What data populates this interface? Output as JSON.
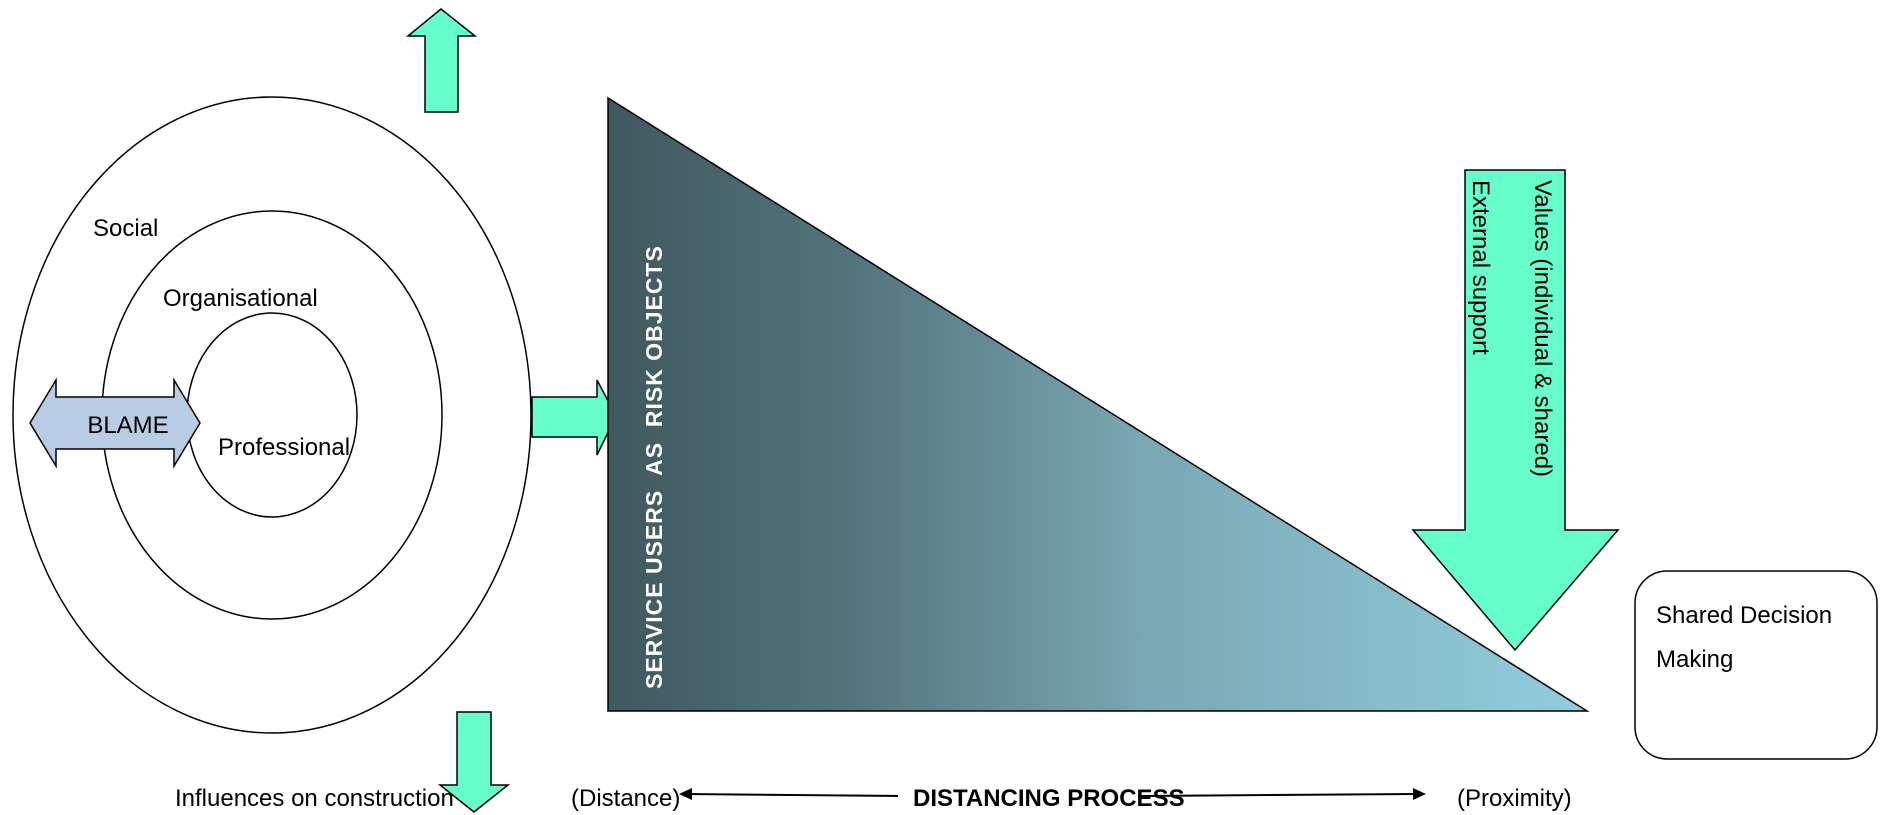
{
  "circles": {
    "outer_label": "Social",
    "middle_label": "Organisational",
    "inner_label": "Professional"
  },
  "blame": {
    "label": "BLAME"
  },
  "triangle": {
    "label": "SERVICE USERS  AS  RISK OBJECTS"
  },
  "down_arrow": {
    "line1": "Values (individual & shared)",
    "line2": "External support"
  },
  "decision_box": {
    "line1": "Shared Decision",
    "line2": "Making"
  },
  "bottom": {
    "influences": "Influences on construction",
    "distance": "(Distance)",
    "process": "DISTANCING PROCESS",
    "proximity": "(Proximity)"
  },
  "colors": {
    "arrow_fill": "#66ffcc",
    "blame_fill": "#b8cce4",
    "triangle_dark": "#3f585e",
    "triangle_light": "#92cddc"
  }
}
